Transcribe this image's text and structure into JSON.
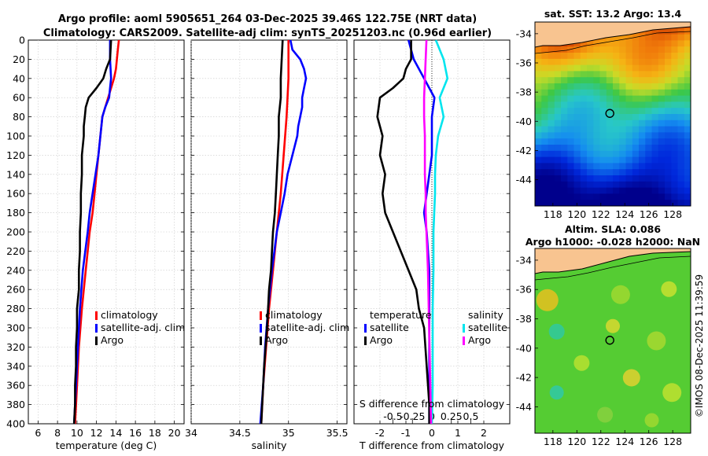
{
  "header": {
    "line1": "Argo profile: aoml 5905651_264 03-Dec-2025 39.46S 122.75E (NRT data)",
    "line2": "Climatology: CARS2009. Satellite-adj clim: synTS_20251203.nc (0.96d earlier)"
  },
  "colors": {
    "climatology": "#ff0000",
    "satellite": "#0000ff",
    "argo": "#000000",
    "sal_satellite": "#00e5ee",
    "sal_argo": "#ff00ff"
  },
  "chart_data": [
    {
      "id": "temperature",
      "type": "line",
      "xlabel": "temperature (deg C)",
      "ylabel": "",
      "xlim": [
        5,
        21
      ],
      "ylim": [
        400,
        0
      ],
      "xticks": [
        6,
        8,
        10,
        12,
        14,
        16,
        18,
        20
      ],
      "yticks": [
        0,
        20,
        40,
        60,
        80,
        100,
        120,
        140,
        160,
        180,
        200,
        220,
        240,
        260,
        280,
        300,
        320,
        340,
        360,
        380,
        400
      ],
      "legend": [
        "climatology",
        "satellite-adj. clim",
        "Argo"
      ],
      "series": [
        {
          "name": "climatology",
          "color": "#ff0000",
          "depth": [
            0,
            10,
            20,
            30,
            40,
            50,
            60,
            70,
            80,
            100,
            120,
            140,
            160,
            180,
            200,
            240,
            280,
            320,
            360,
            400
          ],
          "values": [
            14.3,
            14.2,
            14.1,
            14.0,
            13.8,
            13.5,
            13.2,
            12.9,
            12.6,
            12.4,
            12.2,
            12.0,
            11.8,
            11.6,
            11.3,
            10.9,
            10.5,
            10.2,
            10.0,
            9.8
          ]
        },
        {
          "name": "satellite-adj. clim",
          "color": "#0000ff",
          "depth": [
            0,
            20,
            40,
            50,
            60,
            70,
            80,
            100,
            120,
            140,
            160,
            180,
            200,
            240,
            280,
            320,
            360,
            400
          ],
          "values": [
            13.4,
            13.4,
            13.5,
            13.4,
            13.3,
            12.9,
            12.6,
            12.4,
            12.2,
            11.9,
            11.6,
            11.3,
            11.1,
            10.6,
            10.3,
            10.1,
            9.9,
            9.7
          ]
        },
        {
          "name": "Argo",
          "color": "#000000",
          "depth": [
            0,
            20,
            30,
            40,
            50,
            55,
            60,
            70,
            80,
            90,
            100,
            120,
            140,
            160,
            180,
            200,
            220,
            240,
            260,
            280,
            300,
            320,
            340,
            360,
            380,
            400
          ],
          "values": [
            13.5,
            13.4,
            13.0,
            12.7,
            12.0,
            11.6,
            11.2,
            10.9,
            10.8,
            10.7,
            10.7,
            10.5,
            10.5,
            10.4,
            10.4,
            10.3,
            10.3,
            10.2,
            10.2,
            10.0,
            10.0,
            9.9,
            9.9,
            9.8,
            9.8,
            9.7
          ]
        }
      ]
    },
    {
      "id": "salinity",
      "type": "line",
      "xlabel": "salinity",
      "ylabel": "",
      "xlim": [
        34,
        35.6
      ],
      "ylim": [
        400,
        0
      ],
      "xticks": [
        34,
        34.5,
        35,
        35.5
      ],
      "xticklabels": [
        "34",
        "34.5",
        "35",
        "35.5"
      ],
      "legend": [
        "climatology",
        "satellite-adj. clim",
        "Argo"
      ],
      "series": [
        {
          "name": "climatology",
          "color": "#ff0000",
          "depth": [
            0,
            40,
            80,
            120,
            160,
            200,
            240,
            280,
            320,
            360,
            400
          ],
          "values": [
            35.0,
            35.0,
            34.98,
            34.95,
            34.92,
            34.88,
            34.84,
            34.8,
            34.77,
            34.74,
            34.72
          ]
        },
        {
          "name": "satellite-adj. clim",
          "color": "#0000ff",
          "depth": [
            0,
            10,
            20,
            30,
            40,
            50,
            60,
            70,
            80,
            90,
            100,
            120,
            140,
            160,
            180,
            200,
            240,
            280,
            320,
            360,
            400
          ],
          "values": [
            35.02,
            35.04,
            35.12,
            35.16,
            35.18,
            35.16,
            35.14,
            35.14,
            35.12,
            35.1,
            35.09,
            35.04,
            34.99,
            34.96,
            34.92,
            34.88,
            34.83,
            34.79,
            34.76,
            34.74,
            34.71
          ]
        },
        {
          "name": "Argo",
          "color": "#000000",
          "depth": [
            0,
            20,
            40,
            60,
            80,
            100,
            120,
            140,
            160,
            180,
            200,
            220,
            240,
            260,
            280,
            300,
            340,
            380,
            400
          ],
          "values": [
            34.94,
            34.93,
            34.92,
            34.92,
            34.9,
            34.9,
            34.89,
            34.88,
            34.87,
            34.86,
            34.84,
            34.83,
            34.82,
            34.8,
            34.79,
            34.78,
            34.75,
            34.73,
            34.72
          ]
        }
      ]
    },
    {
      "id": "difference",
      "type": "line",
      "xlabel": "T difference from climatology",
      "xlabel2": "S difference from climatology",
      "xlim": [
        -3,
        3
      ],
      "xlim2": [
        -1,
        1
      ],
      "ylim": [
        400,
        0
      ],
      "xticks": [
        -2,
        -1,
        0,
        1,
        2
      ],
      "xticks2": [
        -0.5,
        -0.25,
        0,
        0.25,
        0.5
      ],
      "xticklabels2": [
        "-0.5",
        "-0.25",
        "0",
        "0.25",
        "0.5"
      ],
      "legend_temperature_title": "temperature",
      "legend_salinity_title": "salinity",
      "legend_temperature": [
        "satellite",
        "Argo"
      ],
      "legend_salinity": [
        "satellite",
        "Argo"
      ],
      "series": [
        {
          "name": "T satellite",
          "axis": "T",
          "color": "#0000ff",
          "depth": [
            0,
            20,
            40,
            60,
            80,
            100,
            120,
            140,
            160,
            180,
            200,
            240,
            280,
            320,
            360,
            400
          ],
          "values": [
            -0.9,
            -0.7,
            -0.3,
            0.1,
            0.0,
            0.0,
            0.0,
            -0.1,
            -0.2,
            -0.3,
            -0.2,
            -0.1,
            -0.1,
            -0.1,
            -0.1,
            -0.1
          ]
        },
        {
          "name": "T Argo",
          "axis": "T",
          "color": "#000000",
          "depth": [
            0,
            20,
            30,
            40,
            50,
            60,
            80,
            100,
            120,
            140,
            160,
            180,
            200,
            220,
            240,
            260,
            280,
            300,
            340,
            380,
            400
          ],
          "values": [
            -0.8,
            -0.8,
            -1.0,
            -1.1,
            -1.5,
            -2.0,
            -2.1,
            -1.9,
            -2.0,
            -1.8,
            -1.9,
            -1.8,
            -1.5,
            -1.2,
            -0.9,
            -0.6,
            -0.5,
            -0.3,
            -0.2,
            -0.1,
            -0.1
          ]
        },
        {
          "name": "S satellite",
          "axis": "S",
          "color": "#00e5ee",
          "depth": [
            0,
            20,
            40,
            60,
            80,
            100,
            120,
            140,
            160,
            180,
            200,
            240,
            280,
            320,
            360,
            400
          ],
          "values": [
            0.05,
            0.15,
            0.2,
            0.1,
            0.15,
            0.08,
            0.05,
            0.04,
            0.04,
            0.03,
            0.02,
            0.02,
            0.01,
            0.01,
            0.01,
            0.0
          ]
        },
        {
          "name": "S Argo",
          "axis": "S",
          "color": "#ff00ff",
          "depth": [
            0,
            20,
            40,
            60,
            80,
            100,
            120,
            140,
            160,
            180,
            200,
            240,
            280,
            320,
            360,
            400
          ],
          "values": [
            -0.07,
            -0.08,
            -0.09,
            -0.1,
            -0.1,
            -0.09,
            -0.09,
            -0.09,
            -0.08,
            -0.08,
            -0.07,
            -0.05,
            -0.04,
            -0.03,
            -0.02,
            -0.01
          ]
        }
      ]
    },
    {
      "id": "sst_map",
      "type": "heatmap",
      "title": "sat. SST: 13.2 Argo: 13.4",
      "xticks": [
        118,
        120,
        122,
        124,
        126,
        128
      ],
      "yticks": [
        -34,
        -36,
        -38,
        -40,
        -42,
        -44
      ],
      "xlim": [
        116.5,
        129.5
      ],
      "ylim": [
        -45.8,
        -33.2
      ],
      "argo_position": [
        122.75,
        -39.46
      ]
    },
    {
      "id": "sla_map",
      "type": "heatmap",
      "title1": "Altim. SLA: 0.086",
      "title2": "Argo h1000: -0.028 h2000: NaN",
      "xticks": [
        118,
        120,
        122,
        124,
        126,
        128
      ],
      "yticks": [
        -34,
        -36,
        -38,
        -40,
        -42,
        -44
      ],
      "xlim": [
        116.5,
        129.5
      ],
      "ylim": [
        -45.8,
        -33.2
      ],
      "argo_position": [
        122.75,
        -39.46
      ]
    }
  ],
  "footer": {
    "stamp": "©IMOS 08-Dec-2025 11:39:59"
  }
}
